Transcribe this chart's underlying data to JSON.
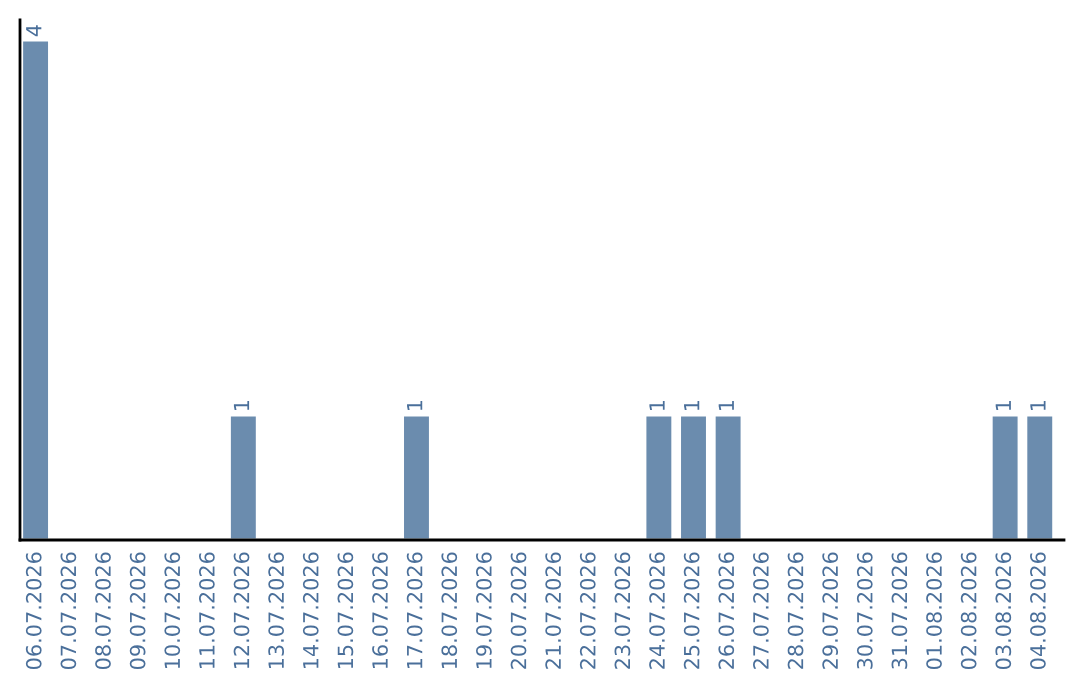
{
  "chart_data": {
    "type": "bar",
    "categories": [
      "06.07.2026",
      "07.07.2026",
      "08.07.2026",
      "09.07.2026",
      "10.07.2026",
      "11.07.2026",
      "12.07.2026",
      "13.07.2026",
      "14.07.2026",
      "15.07.2026",
      "16.07.2026",
      "17.07.2026",
      "18.07.2026",
      "19.07.2026",
      "20.07.2026",
      "21.07.2026",
      "22.07.2026",
      "23.07.2026",
      "24.07.2026",
      "25.07.2026",
      "26.07.2026",
      "27.07.2026",
      "28.07.2026",
      "29.07.2026",
      "30.07.2026",
      "31.07.2026",
      "01.08.2026",
      "02.08.2026",
      "03.08.2026",
      "04.08.2026"
    ],
    "values": [
      4,
      0,
      0,
      0,
      0,
      0,
      1,
      0,
      0,
      0,
      0,
      1,
      0,
      0,
      0,
      0,
      0,
      0,
      1,
      1,
      1,
      0,
      0,
      0,
      0,
      0,
      0,
      0,
      1,
      1
    ],
    "value_labels": [
      "4",
      null,
      null,
      null,
      null,
      null,
      "1",
      null,
      null,
      null,
      null,
      "1",
      null,
      null,
      null,
      null,
      null,
      null,
      "1",
      "1",
      "1",
      null,
      null,
      null,
      null,
      null,
      null,
      null,
      "1",
      "1"
    ],
    "color": "#6b8cae",
    "ylim": [
      0,
      4.16
    ],
    "tick_labels": "x",
    "grid": false,
    "legend": false
  }
}
